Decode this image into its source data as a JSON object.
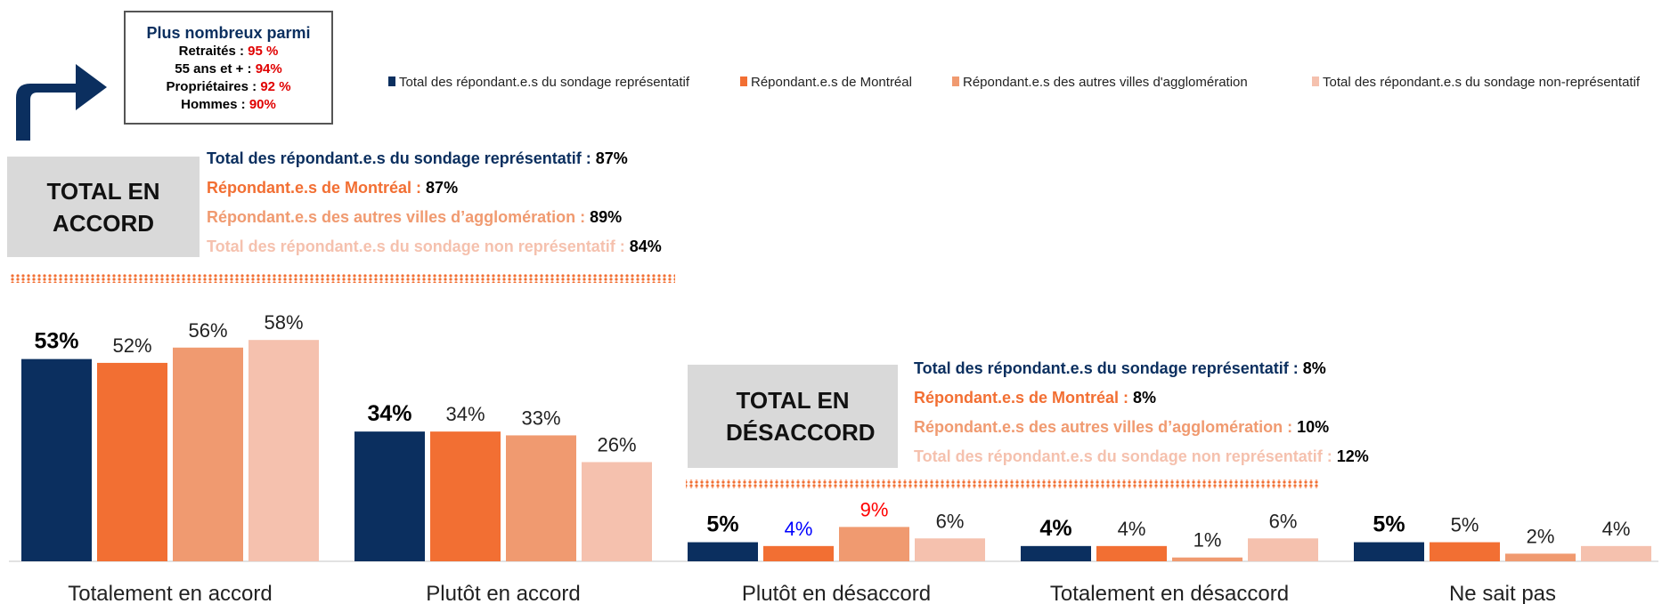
{
  "chart_data": {
    "type": "bar",
    "categories": [
      "Totalement en accord",
      "Plutôt en accord",
      "Plutôt en désaccord",
      "Totalement en désaccord",
      "Ne sait pas"
    ],
    "series": [
      {
        "name": "Total des répondant.e.s du sondage représentatif",
        "color": "#0b2f5f",
        "values": [
          53,
          34,
          5,
          4,
          5
        ],
        "value_labels": [
          "53%",
          "34%",
          "5%",
          "4%",
          "5%"
        ],
        "value_label_colors": [
          "#000000",
          "#000000",
          "#000000",
          "#000000",
          "#000000"
        ]
      },
      {
        "name": "Répondant.e.s de Montréal",
        "color": "#f26f33",
        "values": [
          52,
          34,
          4,
          4,
          5
        ],
        "value_labels": [
          "52%",
          "34%",
          "4%",
          "4%",
          "5%"
        ],
        "value_label_colors": [
          "#222222",
          "#222222",
          "#0000ff",
          "#222222",
          "#222222"
        ]
      },
      {
        "name": "Répondant.e.s des autres villes d'agglomération",
        "color": "#f09a70",
        "values": [
          56,
          33,
          9,
          1,
          2
        ],
        "value_labels": [
          "56%",
          "33%",
          "9%",
          "1%",
          "2%"
        ],
        "value_label_colors": [
          "#222222",
          "#222222",
          "#ff0000",
          "#222222",
          "#222222"
        ]
      },
      {
        "name": "Total des répondant.e.s du sondage non-représentatif",
        "color": "#f5c1ae",
        "values": [
          58,
          26,
          6,
          6,
          4
        ],
        "value_labels": [
          "58%",
          "26%",
          "6%",
          "6%",
          "4%"
        ],
        "value_label_colors": [
          "#222222",
          "#222222",
          "#222222",
          "#222222",
          "#222222"
        ]
      }
    ]
  },
  "callout": {
    "title": "Plus nombreux parmi",
    "items": [
      {
        "label": "Retraités :",
        "value": "95 %"
      },
      {
        "label": "55 ans et + :",
        "value": "94%"
      },
      {
        "label": "Propriétaires :",
        "value": "92 %"
      },
      {
        "label": "Hommes :",
        "value": "90%"
      }
    ]
  },
  "summary_agree": {
    "title": "TOTAL EN ACCORD",
    "items": [
      {
        "label": "Total des répondant.e.s du sondage représentatif :",
        "value": "87%"
      },
      {
        "label": "Répondant.e.s de Montréal :",
        "value": "87%"
      },
      {
        "label": "Répondant.e.s des autres villes d’agglomération :",
        "value": "89%"
      },
      {
        "label": "Total des répondant.e.s du sondage non représentatif :",
        "value": "84%"
      }
    ]
  },
  "summary_disagree": {
    "title": "TOTAL EN DÉSACCORD",
    "items": [
      {
        "label": "Total des répondant.e.s du sondage représentatif :",
        "value": "8%"
      },
      {
        "label": "Répondant.e.s de Montréal :",
        "value": "8%"
      },
      {
        "label": "Répondant.e.s des autres villes d’agglomération :",
        "value": "10%"
      },
      {
        "label": "Total des répondant.e.s du sondage non représentatif :",
        "value": "12%"
      }
    ]
  }
}
